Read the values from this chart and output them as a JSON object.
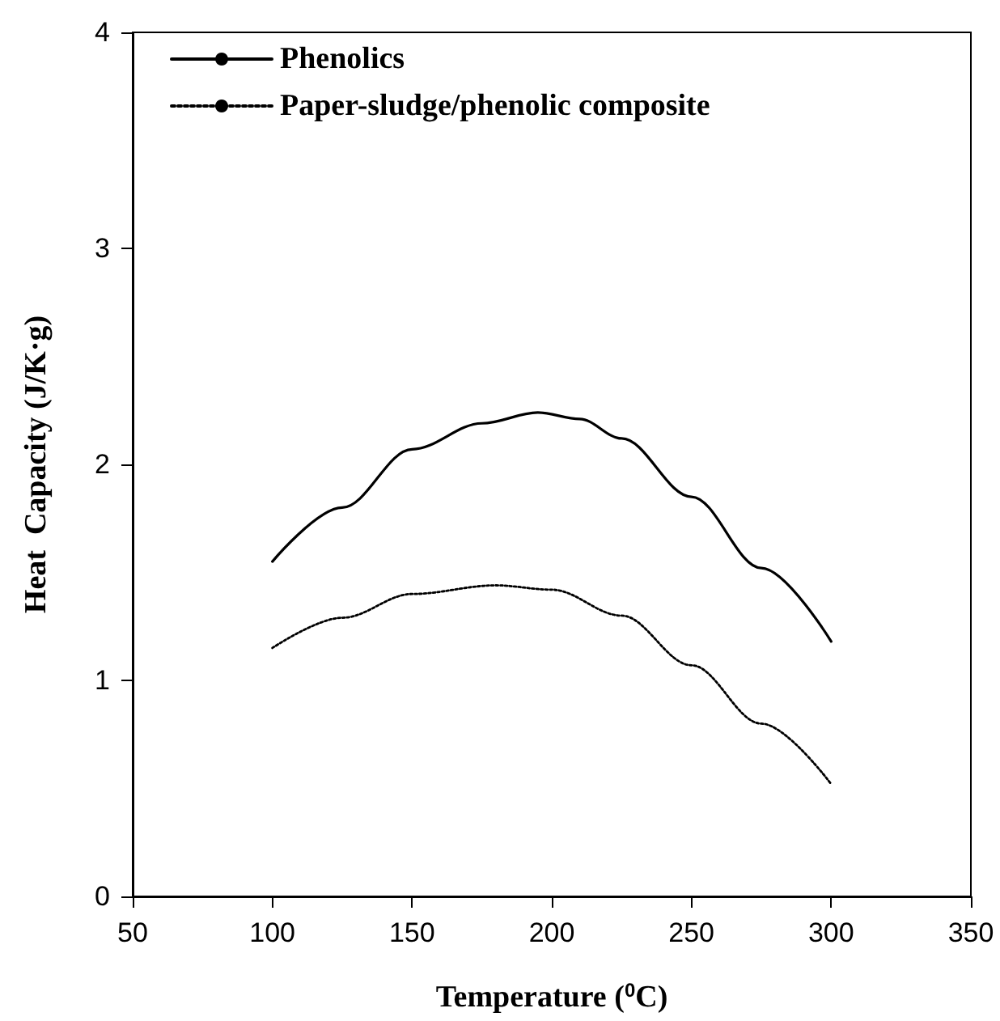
{
  "chart_data": {
    "type": "line",
    "xlabel": "Temperature ($^{0}$C)",
    "ylabel": "Heat  Capacity (J/K·g)",
    "xlim": [
      50,
      350
    ],
    "xticks": [
      50,
      100,
      150,
      200,
      250,
      300,
      350
    ],
    "ylim": [
      0,
      4
    ],
    "yticks": [
      0,
      1,
      2,
      3,
      4
    ],
    "grid": false,
    "legend": "top left",
    "marker": "none",
    "series": [
      {
        "name": "Phenolics",
        "color": "#000000",
        "line_style": "solid",
        "x": [
          100,
          125,
          150,
          175,
          195,
          210,
          225,
          250,
          275,
          300
        ],
        "values": [
          1.55,
          1.8,
          2.07,
          2.19,
          2.24,
          2.21,
          2.12,
          1.85,
          1.52,
          1.18
        ]
      },
      {
        "name": "Paper-sludge/phenolic composite",
        "color": "#000000",
        "line_style": "dotted",
        "x": [
          100,
          125,
          150,
          180,
          200,
          225,
          250,
          275,
          300
        ],
        "values": [
          1.15,
          1.29,
          1.4,
          1.44,
          1.42,
          1.3,
          1.07,
          0.8,
          0.52
        ]
      }
    ]
  }
}
